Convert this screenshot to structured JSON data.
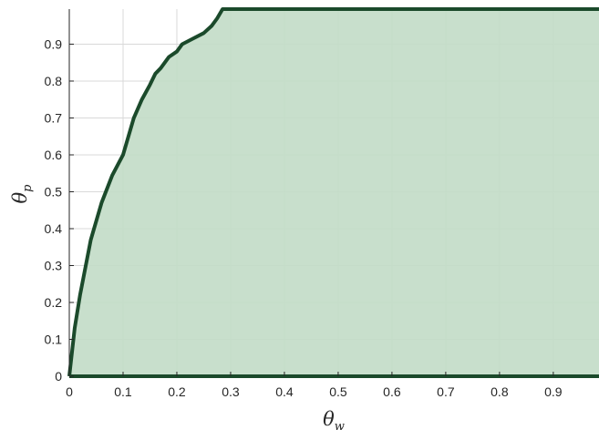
{
  "chart_data": {
    "type": "area",
    "title": "",
    "xlabel": "θ",
    "xlabel_sub": "w",
    "ylabel": "θ",
    "ylabel_sub": "p",
    "xlim": [
      0,
      0.985
    ],
    "ylim": [
      0,
      0.995
    ],
    "grid": true,
    "colors": {
      "fill": "#c2dcc6",
      "line": "#1b4a2b",
      "grid": "#d9d9d9",
      "axis": "#262626"
    },
    "xticks": [
      0,
      0.1,
      0.2,
      0.3,
      0.4,
      0.5,
      0.6,
      0.7,
      0.8,
      0.9
    ],
    "xtick_labels": [
      "0",
      "0.1",
      "0.2",
      "0.3",
      "0.4",
      "0.5",
      "0.6",
      "0.7",
      "0.8",
      "0.9"
    ],
    "yticks": [
      0,
      0.1,
      0.2,
      0.3,
      0.4,
      0.5,
      0.6,
      0.7,
      0.8,
      0.9
    ],
    "ytick_labels": [
      "0",
      "0.1",
      "0.2",
      "0.3",
      "0.4",
      "0.5",
      "0.6",
      "0.7",
      "0.8",
      "0.9"
    ],
    "x": [
      0,
      0.01,
      0.02,
      0.04,
      0.06,
      0.08,
      0.1,
      0.12,
      0.135,
      0.15,
      0.16,
      0.17,
      0.185,
      0.2,
      0.21,
      0.23,
      0.25,
      0.265,
      0.275,
      0.285,
      0.985
    ],
    "y": [
      0,
      0.13,
      0.22,
      0.37,
      0.47,
      0.545,
      0.6,
      0.7,
      0.75,
      0.79,
      0.82,
      0.835,
      0.865,
      0.88,
      0.9,
      0.915,
      0.93,
      0.95,
      0.97,
      0.995,
      0.995
    ]
  }
}
